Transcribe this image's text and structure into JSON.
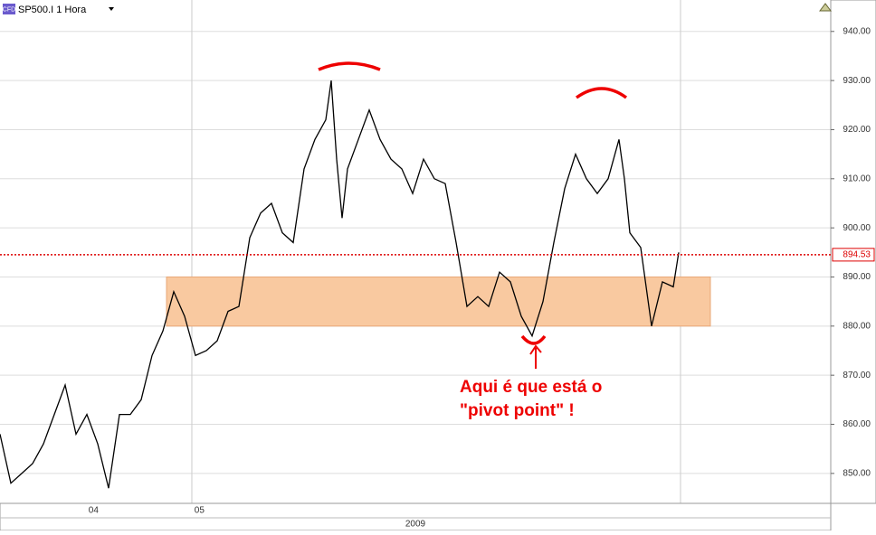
{
  "chart_data": {
    "type": "line",
    "title": "SP500.I 1 Hora",
    "badge": "CFD",
    "x_label": "2009",
    "x": [
      0,
      2,
      4,
      6,
      8,
      10,
      12,
      14,
      16,
      18,
      20,
      22,
      24,
      26,
      28,
      30,
      32,
      34,
      36,
      38,
      40,
      42,
      44,
      46,
      48,
      50,
      52,
      54,
      56,
      58,
      60,
      61,
      62,
      63,
      64,
      66,
      68,
      70,
      72,
      74,
      76,
      78,
      80,
      82,
      84,
      86,
      88,
      90,
      92,
      94,
      96,
      98,
      100,
      102,
      104,
      106,
      108,
      110,
      112,
      114,
      115,
      116,
      118,
      120,
      122,
      124,
      125
    ],
    "series": [
      {
        "name": "SP500.I",
        "color": "#000000",
        "values": [
          858,
          848,
          850,
          852,
          856,
          862,
          868,
          858,
          862,
          856,
          847,
          862,
          862,
          865,
          874,
          879,
          887,
          882,
          874,
          875,
          877,
          883,
          884,
          898,
          903,
          905,
          899,
          897,
          912,
          918,
          922,
          930,
          914,
          902,
          912,
          918,
          924,
          918,
          914,
          912,
          907,
          914,
          910,
          909,
          897,
          884,
          886,
          884,
          891,
          889,
          882,
          878,
          885,
          897,
          908,
          915,
          910,
          907,
          910,
          918,
          910,
          899,
          896,
          880,
          889,
          888,
          895
        ]
      }
    ],
    "xlim": [
      0,
      153
    ],
    "ylim": [
      843.9,
      946.4
    ],
    "xticks": [
      {
        "value": 16.3,
        "label": "04"
      },
      {
        "value": 35.8,
        "label": "05"
      }
    ],
    "separators": [
      35.33,
      125.33
    ],
    "yticks": [
      {
        "value": 850,
        "label": "850.00"
      },
      {
        "value": 860,
        "label": "860.00"
      },
      {
        "value": 870,
        "label": "870.00"
      },
      {
        "value": 880,
        "label": "880.00"
      },
      {
        "value": 890,
        "label": "890.00"
      },
      {
        "value": 900,
        "label": "900.00"
      },
      {
        "value": 910,
        "label": "910.00"
      },
      {
        "value": 920,
        "label": "920.00"
      },
      {
        "value": 930,
        "label": "930.00"
      },
      {
        "value": 940,
        "label": "940.00"
      }
    ],
    "grid": true,
    "ref_line": {
      "value": 894.53,
      "color": "#dd0000"
    },
    "band": {
      "y": [
        880,
        890
      ],
      "x": [
        30.67,
        130.83
      ],
      "color": "#f9c9a0"
    },
    "annotation": [
      "Aqui é que está o",
      "\"pivot point\" !"
    ]
  }
}
